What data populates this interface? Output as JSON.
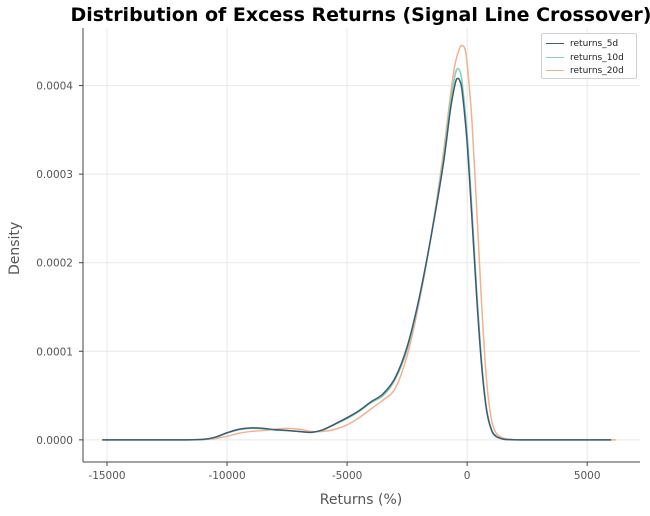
{
  "chart_data": {
    "type": "line",
    "title": "Distribution of Excess Returns (Signal Line Crossover)",
    "xlabel": "Returns (%)",
    "ylabel": "Density",
    "xlim": [
      -16000,
      7200
    ],
    "ylim": [
      -2.5e-05,
      0.000465
    ],
    "xticks": [
      -15000,
      -10000,
      -5000,
      0,
      5000
    ],
    "xtick_labels": [
      "-15000",
      "-10000",
      "-5000",
      "0",
      "5000"
    ],
    "yticks": [
      0,
      0.0001,
      0.0002,
      0.0003,
      0.0004
    ],
    "ytick_labels": [
      "0.0000",
      "0.0001",
      "0.0002",
      "0.0003",
      "0.0004"
    ],
    "grid": true,
    "legend_position": "top-right",
    "series": [
      {
        "name": "returns_5d",
        "color": "#3e5a73",
        "x": [
          -15200,
          -12000,
          -11000,
          -10500,
          -10000,
          -9500,
          -9000,
          -8500,
          -8000,
          -7500,
          -7000,
          -6500,
          -6000,
          -5500,
          -5000,
          -4500,
          -4000,
          -3500,
          -3000,
          -2500,
          -2000,
          -1500,
          -1000,
          -700,
          -500,
          -400,
          -300,
          -200,
          0,
          200,
          400,
          600,
          800,
          1000,
          1200,
          1500,
          1800,
          2200,
          3000,
          4500,
          6000
        ],
        "y": [
          0,
          0,
          5e-07,
          3e-06,
          8e-06,
          1.2e-05,
          1.35e-05,
          1.3e-05,
          1.15e-05,
          1.05e-05,
          9.5e-06,
          8.5e-06,
          1.15e-05,
          1.8e-05,
          2.5e-05,
          3.3e-05,
          4.3e-05,
          5.2e-05,
          7e-05,
          0.000105,
          0.00016,
          0.00023,
          0.00031,
          0.000372,
          0.000402,
          0.000408,
          0.000405,
          0.000392,
          0.000335,
          0.00025,
          0.00016,
          8.5e-05,
          3.5e-05,
          1.2e-05,
          4e-06,
          8e-07,
          2e-07,
          0,
          0,
          0,
          0
        ]
      },
      {
        "name": "returns_10d",
        "color": "#7fd3b7",
        "x": [
          -15200,
          -12000,
          -11000,
          -10500,
          -10000,
          -9500,
          -9000,
          -8500,
          -8000,
          -7500,
          -7000,
          -6500,
          -6000,
          -5500,
          -5000,
          -4500,
          -4000,
          -3500,
          -3000,
          -2500,
          -2000,
          -1500,
          -1000,
          -700,
          -500,
          -400,
          -300,
          -200,
          0,
          200,
          400,
          600,
          800,
          1000,
          1200,
          1500,
          1800,
          2200,
          3000,
          4500,
          6000
        ],
        "y": [
          0,
          0,
          4e-07,
          2.5e-06,
          7.5e-06,
          1.15e-05,
          1.3e-05,
          1.25e-05,
          1.1e-05,
          1.05e-05,
          9.5e-06,
          8.5e-06,
          1.1e-05,
          1.75e-05,
          2.4e-05,
          3.2e-05,
          4.2e-05,
          5e-05,
          6.8e-05,
          0.000102,
          0.000158,
          0.00023,
          0.000315,
          0.00038,
          0.000412,
          0.000419,
          0.000416,
          0.000402,
          0.000345,
          0.00026,
          0.000168,
          9e-05,
          3.7e-05,
          1.3e-05,
          4.5e-06,
          1e-06,
          2e-07,
          0,
          0,
          0,
          0
        ]
      },
      {
        "name": "returns_20d",
        "color": "#f4b08c",
        "x": [
          -15200,
          -12000,
          -11000,
          -10500,
          -10000,
          -9500,
          -9000,
          -8500,
          -8000,
          -7500,
          -7000,
          -6500,
          -6000,
          -5500,
          -5000,
          -4500,
          -4000,
          -3500,
          -3000,
          -2500,
          -2000,
          -1500,
          -1000,
          -700,
          -500,
          -300,
          -200,
          -100,
          0,
          200,
          400,
          600,
          800,
          1000,
          1200,
          1500,
          1800,
          2200,
          3000,
          4500,
          6200
        ],
        "y": [
          0,
          0,
          3e-07,
          1.5e-06,
          4e-06,
          7.5e-06,
          9.5e-06,
          1.05e-05,
          1.2e-05,
          1.3e-05,
          1.2e-05,
          9.5e-06,
          9.5e-06,
          1.2e-05,
          1.7e-05,
          2.5e-05,
          3.5e-05,
          4.5e-05,
          5.8e-05,
          9.5e-05,
          0.000155,
          0.00023,
          0.000322,
          0.000388,
          0.000425,
          0.000443,
          0.000445,
          0.000442,
          0.000425,
          0.00036,
          0.00026,
          0.000155,
          7e-05,
          2.5e-05,
          8e-06,
          2e-06,
          5e-07,
          0,
          0,
          0,
          0
        ]
      }
    ]
  }
}
